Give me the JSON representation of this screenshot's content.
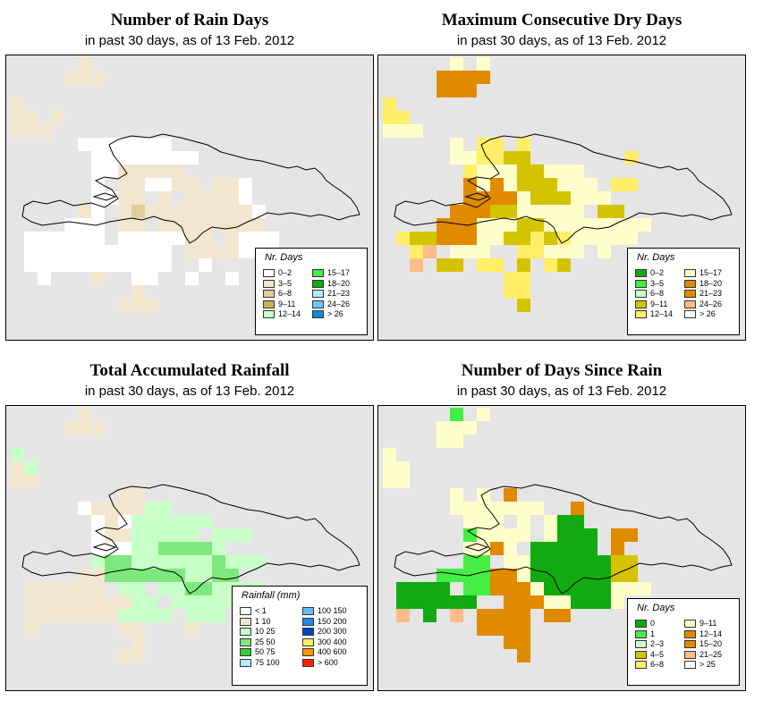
{
  "panels": [
    {
      "title": "Number of Rain Days",
      "subtitle": "in past 30 days, as of  13 Feb. 2012",
      "legend": {
        "title": "Nr. Days",
        "items": [
          {
            "label": "0–2",
            "color": "#ffffff"
          },
          {
            "label": "3–5",
            "color": "#f2e6cf"
          },
          {
            "label": "6–8",
            "color": "#e2cc9a"
          },
          {
            "label": "9–11",
            "color": "#d0ad55"
          },
          {
            "label": "12–14",
            "color": "#c8ffc8"
          },
          {
            "label": "15–17",
            "color": "#44ee44"
          },
          {
            "label": "18–20",
            "color": "#11aa11"
          },
          {
            "label": "21–23",
            "color": "#b4ecff"
          },
          {
            "label": "24–26",
            "color": "#66c8ff"
          },
          {
            "label": "> 26",
            "color": "#1188dd"
          }
        ]
      }
    },
    {
      "title": "Maximum Consecutive Dry Days",
      "subtitle": "in past 30 days, as of  13 Feb. 2012",
      "legend": {
        "title": "Nr. Days",
        "items": [
          {
            "label": "0–2",
            "color": "#11aa11"
          },
          {
            "label": "3–5",
            "color": "#44ee44"
          },
          {
            "label": "6–8",
            "color": "#c8ffc8"
          },
          {
            "label": "9–11",
            "color": "#d4c400"
          },
          {
            "label": "12–14",
            "color": "#ffee66"
          },
          {
            "label": "15–17",
            "color": "#ffffcc"
          },
          {
            "label": "18–20",
            "color": "#e08a00"
          },
          {
            "label": "21–23",
            "color": "#e08a00"
          },
          {
            "label": "24–26",
            "color": "#ffbb88"
          },
          {
            "label": "> 26",
            "color": "#ffffff"
          }
        ]
      }
    },
    {
      "title": "Total Accumulated Rainfall",
      "subtitle": "in past 30 days, as of  13 Feb. 2012",
      "legend": {
        "title": "Rainfall (mm)",
        "items": [
          {
            "label": "< 1",
            "color": "#ffffff"
          },
          {
            "label": "1    10",
            "color": "#f2e6cf"
          },
          {
            "label": "10    25",
            "color": "#c8ffc8"
          },
          {
            "label": "25    50",
            "color": "#7de87d"
          },
          {
            "label": "50    75",
            "color": "#33cc33"
          },
          {
            "label": "75  100",
            "color": "#b4ecff"
          },
          {
            "label": "100  150",
            "color": "#66bbff"
          },
          {
            "label": "150  200",
            "color": "#2288ee"
          },
          {
            "label": "200  300",
            "color": "#0044cc"
          },
          {
            "label": "300  400",
            "color": "#ffee66"
          },
          {
            "label": "400  600",
            "color": "#ff9900"
          },
          {
            "label": "> 600",
            "color": "#ff2200"
          }
        ]
      }
    },
    {
      "title": "Number of Days Since Rain",
      "subtitle": "in past 30 days, as of  13 Feb. 2012",
      "legend": {
        "title": "Nr. Days",
        "items": [
          {
            "label": "0",
            "color": "#11aa11"
          },
          {
            "label": "1",
            "color": "#44ee44"
          },
          {
            "label": "2–3",
            "color": "#c8ffc8"
          },
          {
            "label": "4–5",
            "color": "#d4c400"
          },
          {
            "label": "6–8",
            "color": "#ffee66"
          },
          {
            "label": "9–11",
            "color": "#ffffcc"
          },
          {
            "label": "12–14",
            "color": "#e08a00"
          },
          {
            "label": "15–20",
            "color": "#e08a00"
          },
          {
            "label": "21–25",
            "color": "#ffbb88"
          },
          {
            "label": "> 25",
            "color": "#ffffff"
          }
        ]
      }
    }
  ],
  "grids": {
    "p0": [
      ".....1..............",
      "....111.............",
      "....................",
      "1...................",
      "11.1................",
      "111.................",
      ".....0000000........",
      "......00000000......",
      "......0011111.......",
      "......0.110011.110..",
      "......0011.1.11110..",
      ".....10.12111111110.",
      "....000.11.11111111.",
      ".000000.0000011.1000",
      ".00000000000.1111000",
      ".00000000000..0.....",
      "..0...1..00..0..0...",
      ".........1..........",
      "........111........."
    ],
    "p1": [
      ".....5.5............",
      "....2222............",
      "....222.............",
      "4...................",
      "44..................",
      "555.................",
      ".....5.44.4.........",
      ".....554433.......4.",
      "......455533555.....",
      "......6565333555.44.",
      "......66665333555...",
      ".....6663355555.33..",
      "....6665553355555555",
      ".433666553343455555.",
      "..47.5551144555.5...",
      "..7.33.44.3.43......",
      ".........44.........",
      ".........44.........",
      "..........3........."
    ],
    "p2": [
      ".....1..............",
      "....111.............",
      "....................",
      "2...................",
      "12..................",
      "11..................",
      "........11..........",
      ".....0111122........",
      "......010222222.....",
      "......01122222.222..",
      "......0002233332....",
      "......2332222223222.",
      ".....113333332233...",
      ".111111.22.22332222.",
      ".1111111122.2222222.",
      ".11111112222.222....",
      ".1......11...1......",
      ".........1..........",
      "........11.........."
    ],
    "p3": [
      ".....1.5............",
      "....555.............",
      "....55..............",
      "5...................",
      "55..................",
      "55..................",
      ".....5.5.6..........",
      ".....5555555..6.....",
      "......555.5.500.....",
      "......15555.5000.66.",
      "......5565.00000.6..",
      "......11.5500000044.",
      "....111166500000044.",
      ".0000.11666500000555",
      ".000000..666550005..",
      ".7.0.7.6666.66......",
      ".......6666.........",
      ".........66.........",
      "..........6........."
    ]
  },
  "grid_colors": {
    "p0": {
      "0": "#ffffff",
      "1": "#f2e6cf",
      "2": "#e2cc9a"
    },
    "p1": {
      "2": "#e08a00",
      "3": "#d4c400",
      "4": "#ffee66",
      "5": "#ffffcc",
      "6": "#e08a00",
      "7": "#ffbb88"
    },
    "p2": {
      "0": "#ffffff",
      "1": "#f2e6cf",
      "2": "#c8ffc8",
      "3": "#7de87d"
    },
    "p3": {
      "0": "#11aa11",
      "1": "#44ee44",
      "4": "#d4c400",
      "5": "#ffffcc",
      "6": "#e08a00",
      "7": "#ffbb88"
    }
  }
}
